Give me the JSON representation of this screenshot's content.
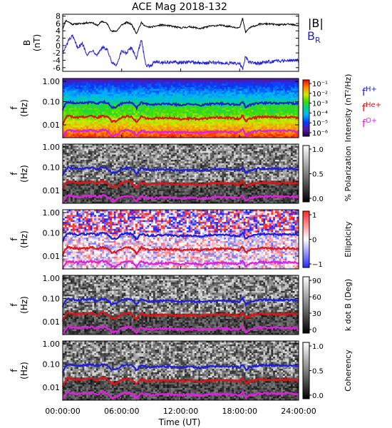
{
  "chart_data": {
    "type": "multi-panel spectrogram",
    "title": "ACE Mag 2018-132",
    "xlabel": "Time (UT)",
    "x_ticks": [
      "00:00:00",
      "06:00:00",
      "12:00:00",
      "18:00:00",
      "24:00:00"
    ],
    "x_range_hours": [
      0,
      24
    ],
    "panels": [
      {
        "id": "mag",
        "type": "line",
        "ylabel_top": "B",
        "ylabel_unit": "(nT)",
        "y_ticks": [
          8,
          6,
          4,
          2,
          0,
          -2,
          -4,
          -6
        ],
        "ylim": [
          -7,
          8.5
        ],
        "legend": [
          {
            "label": "|B|",
            "color": "#000000"
          },
          {
            "label": "B",
            "sub": "R",
            "color": "#1f1fd6"
          }
        ],
        "series": [
          {
            "name": "|B|",
            "color": "#000000",
            "x": [
              0,
              0.3,
              0.6,
              1,
              1.5,
              2,
              2.5,
              3,
              3.5,
              4,
              4.5,
              5,
              5.5,
              6,
              6.5,
              7,
              7.5,
              8,
              8.5,
              9,
              9.5,
              10,
              11,
              12,
              13,
              14,
              15,
              16,
              17,
              18,
              18.3,
              18.6,
              19,
              20,
              21,
              22,
              23,
              24
            ],
            "y": [
              4.6,
              6.8,
              6.4,
              5.8,
              5.9,
              6.0,
              6.2,
              6.3,
              5.4,
              6.6,
              6.0,
              3.8,
              4.0,
              5.6,
              6.3,
              5.8,
              3.3,
              6.2,
              5.1,
              5.0,
              5.3,
              5.6,
              5.3,
              4.8,
              5.1,
              4.6,
              5.3,
              5.5,
              5.2,
              4.8,
              7.4,
              3.6,
              4.8,
              5.8,
              5.9,
              5.6,
              5.8,
              5.4
            ]
          },
          {
            "name": "B_R",
            "color": "#1f1fd6",
            "x": [
              0,
              0.3,
              0.6,
              1,
              1.5,
              2,
              2.5,
              3,
              3.5,
              4,
              4.5,
              5,
              5.5,
              6,
              6.5,
              7,
              7.5,
              8,
              8.5,
              9,
              9.5,
              10,
              11,
              12,
              13,
              14,
              15,
              16,
              17,
              18,
              18.3,
              18.6,
              19,
              20,
              21,
              22,
              23,
              24
            ],
            "y": [
              -2.0,
              -0.5,
              1.5,
              2.5,
              -0.5,
              0.5,
              -2.5,
              -1.2,
              -2.5,
              -0.5,
              -1.0,
              -4.8,
              -5.4,
              -1.5,
              -2.0,
              -0.5,
              -3.5,
              1.5,
              -5.6,
              -5.3,
              -4.2,
              -4.6,
              -4.5,
              -4.7,
              -4.4,
              -4.8,
              -4.6,
              -4.7,
              -4.8,
              -4.9,
              -6.5,
              -3.0,
              -4.6,
              -4.8,
              -4.4,
              -4.2,
              -3.9,
              -4.0
            ]
          }
        ]
      },
      {
        "id": "intensity",
        "type": "heatmap",
        "ylabel": "f (Hz)",
        "y_ticks": [
          "1.00",
          "0.10",
          "0.01"
        ],
        "colorbar_label": "Intensity (nT²/Hz)",
        "colorbar_ticks": [
          "10⁻¹",
          "10⁻²",
          "10⁻³",
          "10⁻⁴",
          "10⁻⁵",
          "10⁻⁶"
        ],
        "colormap": "rainbow",
        "legend": [
          {
            "label": "f",
            "sub": "H+",
            "color": "#1f1fd6"
          },
          {
            "label": "f",
            "sub": "He+",
            "color": "#dd1111"
          },
          {
            "label": "f",
            "sub": "O+",
            "color": "#dd22dd"
          }
        ]
      },
      {
        "id": "polarization",
        "type": "heatmap",
        "ylabel": "f (Hz)",
        "y_ticks": [
          "1.00",
          "0.10",
          "0.01"
        ],
        "colorbar_label": "% Polarization",
        "colorbar_ticks": [
          "1.0",
          "0.5",
          "0.0"
        ],
        "colormap": "gray"
      },
      {
        "id": "ellipticity",
        "type": "heatmap",
        "ylabel": "f (Hz)",
        "y_ticks": [
          "1.00",
          "0.10",
          "0.01"
        ],
        "colorbar_label": "Ellipticity",
        "colorbar_ticks": [
          "1",
          "0",
          "−1"
        ],
        "colormap": "blue-white-red"
      },
      {
        "id": "kdotb",
        "type": "heatmap",
        "ylabel": "f (Hz)",
        "y_ticks": [
          "1.00",
          "0.10",
          "0.01"
        ],
        "colorbar_label": "k dot B (Deg)",
        "colorbar_ticks": [
          "90",
          "60",
          "30",
          "0"
        ],
        "colormap": "gray"
      },
      {
        "id": "coherency",
        "type": "heatmap",
        "ylabel": "f (Hz)",
        "y_ticks": [
          "1.00",
          "0.10",
          "0.01"
        ],
        "colorbar_label": "Coherency",
        "colorbar_ticks": [
          "1.0",
          "0.5",
          "0.0"
        ],
        "colormap": "gray"
      }
    ],
    "gyro_lines": {
      "x": [
        0,
        0.5,
        1,
        1.5,
        2,
        2.5,
        3,
        3.5,
        4,
        4.5,
        5,
        5.5,
        6,
        6.5,
        7,
        7.5,
        8,
        8.5,
        9,
        10,
        11,
        12,
        13,
        14,
        15,
        16,
        17,
        18,
        18.3,
        18.6,
        19,
        20,
        21,
        22,
        23,
        24
      ],
      "fH+": [
        0.045,
        0.1,
        0.09,
        0.085,
        0.09,
        0.09,
        0.095,
        0.082,
        0.1,
        0.09,
        0.058,
        0.06,
        0.085,
        0.095,
        0.09,
        0.052,
        0.092,
        0.078,
        0.076,
        0.08,
        0.08,
        0.073,
        0.078,
        0.07,
        0.08,
        0.083,
        0.079,
        0.073,
        0.105,
        0.055,
        0.073,
        0.088,
        0.09,
        0.085,
        0.088,
        0.082
      ],
      "fHe+": [
        0.011,
        0.025,
        0.022,
        0.021,
        0.022,
        0.022,
        0.024,
        0.02,
        0.025,
        0.022,
        0.014,
        0.015,
        0.021,
        0.024,
        0.022,
        0.013,
        0.023,
        0.019,
        0.019,
        0.02,
        0.02,
        0.018,
        0.019,
        0.018,
        0.02,
        0.021,
        0.02,
        0.018,
        0.026,
        0.014,
        0.018,
        0.022,
        0.022,
        0.021,
        0.022,
        0.02
      ],
      "fO+": [
        0.0028,
        0.0062,
        0.0056,
        0.0053,
        0.0056,
        0.0056,
        0.0059,
        0.0051,
        0.0062,
        0.0056,
        0.0036,
        0.0038,
        0.0053,
        0.0059,
        0.0056,
        0.0033,
        0.0057,
        0.0049,
        0.0047,
        0.005,
        0.005,
        0.0046,
        0.0049,
        0.0044,
        0.005,
        0.0052,
        0.0049,
        0.0046,
        0.0066,
        0.0034,
        0.0046,
        0.0055,
        0.0056,
        0.0053,
        0.0055,
        0.0051
      ]
    }
  }
}
